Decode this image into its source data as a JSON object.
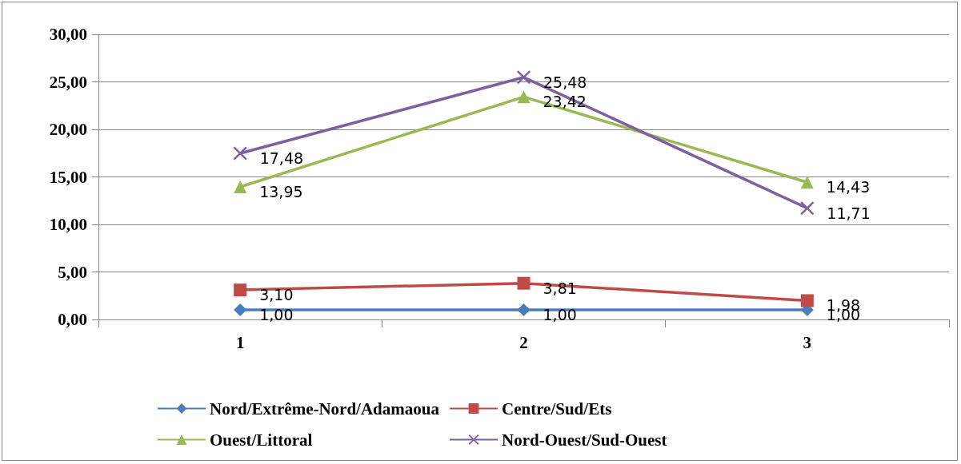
{
  "chart_data": {
    "type": "line",
    "categories": [
      "1",
      "2",
      "3"
    ],
    "series": [
      {
        "name": "Nord/Extrême-Nord/Adamaoua",
        "color": "#4a7ebb",
        "marker": "diamond",
        "values": [
          1.0,
          1.0,
          1.0
        ],
        "value_labels": [
          "1,00",
          "1,00",
          "1,00"
        ]
      },
      {
        "name": "Centre/Sud/Ets",
        "color": "#be4b48",
        "marker": "square",
        "values": [
          3.1,
          3.81,
          1.98
        ],
        "value_labels": [
          "3,10",
          "3,81",
          "1,98"
        ]
      },
      {
        "name": "Ouest/Littoral",
        "color": "#98b954",
        "marker": "triangle",
        "values": [
          13.95,
          23.42,
          14.43
        ],
        "value_labels": [
          "13,95",
          "23,42",
          "14,43"
        ]
      },
      {
        "name": "Nord-Ouest/Sud-Ouest",
        "color": "#7d60a0",
        "marker": "cross",
        "values": [
          17.48,
          25.48,
          11.71
        ],
        "value_labels": [
          "17,48",
          "25,48",
          "11,71"
        ]
      }
    ],
    "ylim": [
      0,
      30
    ],
    "yticks": [
      {
        "value": 0,
        "label": "0,00"
      },
      {
        "value": 5,
        "label": "5,00"
      },
      {
        "value": 10,
        "label": "10,00"
      },
      {
        "value": 15,
        "label": "15,00"
      },
      {
        "value": 20,
        "label": "20,00"
      },
      {
        "value": 25,
        "label": "25,00"
      },
      {
        "value": 30,
        "label": "30,00"
      }
    ],
    "grid": "y",
    "legend": "bottom"
  }
}
